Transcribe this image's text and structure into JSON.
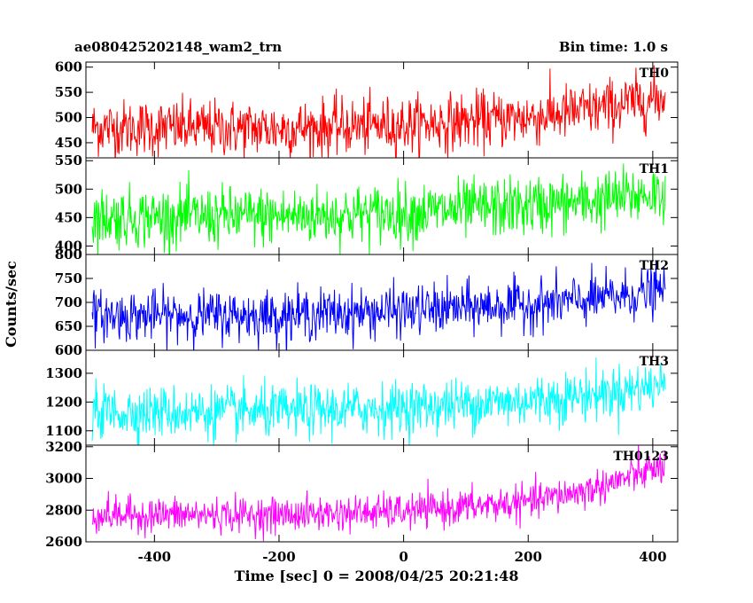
{
  "header": {
    "title": "ae080425202148_wam2_trn",
    "bin_time": "Bin time: 1.0 s"
  },
  "chart_data": {
    "type": "line",
    "xlabel": "Time [sec] 0 = 2008/04/25 20:21:48",
    "ylabel": "Counts/sec",
    "xlim": [
      -510,
      440
    ],
    "xticks": [
      -400,
      -200,
      0,
      200,
      400
    ],
    "x_range_data": [
      -500,
      420
    ],
    "bin_time_s": 1.0,
    "panels": [
      {
        "name": "TH0",
        "color": "#ff0000",
        "ylim": [
          420,
          610
        ],
        "yticks": [
          450,
          500,
          550,
          600
        ],
        "trend": [
          [
            -500,
            480
          ],
          [
            -200,
            478
          ],
          [
            0,
            485
          ],
          [
            200,
            500
          ],
          [
            300,
            515
          ],
          [
            420,
            540
          ]
        ],
        "noise": 28
      },
      {
        "name": "TH1",
        "color": "#00ff00",
        "ylim": [
          385,
          555
        ],
        "yticks": [
          400,
          450,
          500,
          550
        ],
        "trend": [
          [
            -500,
            450
          ],
          [
            -200,
            452
          ],
          [
            0,
            458
          ],
          [
            200,
            470
          ],
          [
            300,
            478
          ],
          [
            420,
            495
          ]
        ],
        "noise": 26
      },
      {
        "name": "TH2",
        "color": "#0000ff",
        "ylim": [
          600,
          800
        ],
        "yticks": [
          600,
          650,
          700,
          750,
          800
        ],
        "trend": [
          [
            -500,
            672
          ],
          [
            -200,
            673
          ],
          [
            0,
            682
          ],
          [
            200,
            695
          ],
          [
            300,
            705
          ],
          [
            420,
            725
          ]
        ],
        "noise": 26
      },
      {
        "name": "TH3",
        "color": "#00ffff",
        "ylim": [
          1050,
          1380
        ],
        "yticks": [
          1100,
          1200,
          1300
        ],
        "trend": [
          [
            -500,
            1165
          ],
          [
            -200,
            1165
          ],
          [
            0,
            1180
          ],
          [
            200,
            1205
          ],
          [
            300,
            1225
          ],
          [
            420,
            1260
          ]
        ],
        "noise": 45
      },
      {
        "name": "TH0123",
        "color": "#ff00ff",
        "ylim": [
          2600,
          3210
        ],
        "yticks": [
          2600,
          2800,
          3000,
          3200
        ],
        "trend": [
          [
            -500,
            2770
          ],
          [
            -200,
            2770
          ],
          [
            0,
            2790
          ],
          [
            200,
            2850
          ],
          [
            300,
            2930
          ],
          [
            420,
            3080
          ]
        ],
        "noise": 55
      }
    ]
  }
}
